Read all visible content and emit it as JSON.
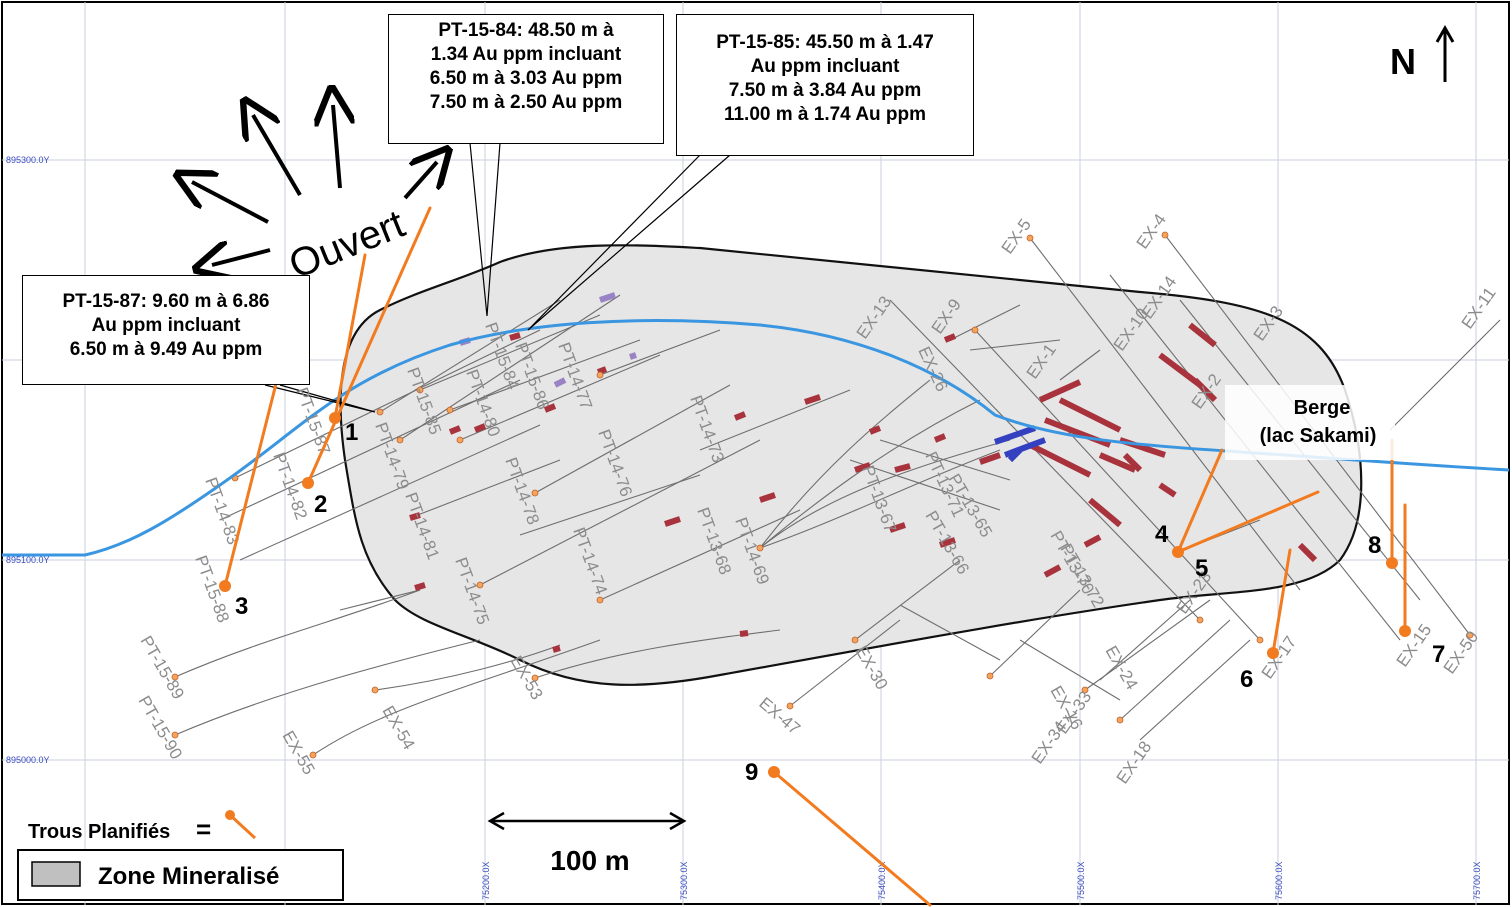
{
  "colors": {
    "zone_fill": "#e6e6e6",
    "zone_stroke": "#111111",
    "shore": "#3a96e0",
    "planned": "#f27b1f",
    "grid": "#c9d2dc",
    "grid_label": "#3b4cc0",
    "hole_trace": "#6e6e6e",
    "hole_label": "#8c8c8c",
    "intercept_red": "#a8333d",
    "intercept_purple": "#9a83c4",
    "intercept_blue": "#3340c0"
  },
  "north": {
    "label": "N"
  },
  "open_label": "Ouvert",
  "lake_label": {
    "line1": "Berge",
    "line2": "(lac Sakami)"
  },
  "scale": {
    "label": "100 m"
  },
  "legend": {
    "planned_label": "Trous Planifiés",
    "equals": "=",
    "zone_label": "Zone Mineralisé"
  },
  "grid_labels": {
    "y": [
      "895300.0Y",
      "895100.0Y",
      "895000.0Y"
    ],
    "x": [
      "75200.0X",
      "75300.0X",
      "75400.0X",
      "75500.0X",
      "75600.0X",
      "75700.0X"
    ]
  },
  "callouts": [
    {
      "id": "pt-15-84",
      "lines": [
        "PT-15-84: 48.50 m à",
        "1.34 Au ppm incluant",
        "6.50 m à 3.03 Au ppm",
        "7.50 m à 2.50 Au ppm"
      ]
    },
    {
      "id": "pt-15-85",
      "lines": [
        "PT-15-85: 45.50 m à 1.47",
        "Au ppm incluant",
        "7.50 m à 3.84 Au ppm",
        "11.00 m à 1.74 Au ppm"
      ]
    },
    {
      "id": "pt-15-87",
      "lines": [
        "PT-15-87: 9.60 m à 6.86",
        "Au ppm incluant",
        "6.50 m à 9.49 Au ppm"
      ]
    }
  ],
  "planned_holes": [
    "1",
    "2",
    "3",
    "4",
    "5",
    "6",
    "7",
    "8",
    "9"
  ],
  "hole_labels": [
    "PT-15-84",
    "PT-15-86",
    "PT-14-77",
    "PT-14-73",
    "PT-15-85",
    "PT-14-80",
    "PT-14-76",
    "PT-14-79",
    "PT-14-78",
    "PT-14-82",
    "PT-15-87",
    "PT-14-83",
    "PT-15-88",
    "PT-14-81",
    "PT-14-75",
    "PT-14-74",
    "PT-13-68",
    "PT-14-69",
    "PT-13-67",
    "PT-13-71",
    "PT-13-65",
    "PT-13-66",
    "PT-13-70",
    "PT-13-72",
    "PT-15-89",
    "PT-15-90",
    "EX-5",
    "EX-4",
    "EX-13",
    "EX-9",
    "EX-26",
    "EX-1",
    "EX-14",
    "EX-10",
    "EX-3",
    "EX-2",
    "EX-11",
    "EX-23",
    "EX-17",
    "EX-15",
    "EX-50",
    "EX-24",
    "EX-33",
    "EX-34",
    "EX-16",
    "EX-18",
    "EX-30",
    "EX-47",
    "EX-53",
    "EX-54",
    "EX-55"
  ]
}
